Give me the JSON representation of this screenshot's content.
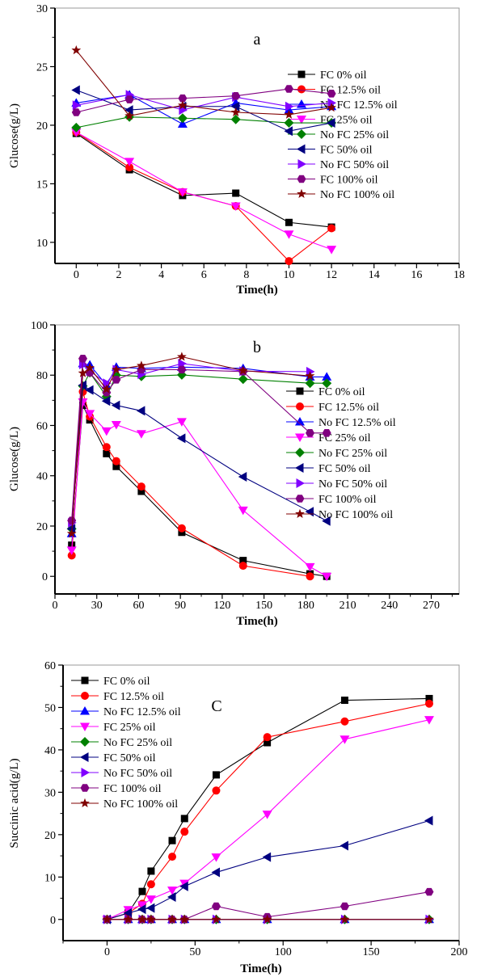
{
  "colors": {
    "FC 0% oil": "#000000",
    "FC 12.5% oil": "#ff0000",
    "No FC 12.5% oil": "#0000ff",
    "FC 25% oil": "#ff00ff",
    "No FC 25% oil": "#008000",
    "FC 50% oil": "#000080",
    "No FC 50% oil": "#8000ff",
    "FC 100% oil": "#800080",
    "No FC 100% oil": "#800000"
  },
  "markers": [
    "square",
    "circle",
    "triangle-up",
    "triangle-down",
    "diamond",
    "triangle-left",
    "triangle-right",
    "hexagon",
    "star"
  ],
  "chart_data": [
    {
      "type": "line",
      "panel_label": "a",
      "xlabel": "Time(h)",
      "ylabel": "Glucose(g/L)",
      "xlim": [
        -1,
        18
      ],
      "ylim": [
        8.2,
        30
      ],
      "xticks": [
        0,
        2,
        4,
        6,
        8,
        10,
        12,
        14,
        16,
        18
      ],
      "yticks": [
        10,
        15,
        20,
        25,
        30
      ],
      "legend": "right",
      "x": [
        0,
        2.5,
        5,
        7.5,
        10,
        12
      ],
      "series": [
        {
          "name": "FC 0% oil",
          "values": [
            19.3,
            16.2,
            14.0,
            14.2,
            11.7,
            11.3
          ]
        },
        {
          "name": "FC 12.5% oil",
          "values": [
            19.4,
            16.4,
            14.3,
            13.1,
            8.4,
            11.2
          ]
        },
        {
          "name": "No FC 12.5% oil",
          "values": [
            21.9,
            22.6,
            20.1,
            21.9,
            21.3,
            21.6
          ]
        },
        {
          "name": "FC 25% oil",
          "values": [
            19.4,
            16.9,
            14.3,
            13.1,
            10.7,
            9.4
          ]
        },
        {
          "name": "No FC 25% oil",
          "values": [
            19.8,
            20.7,
            20.6,
            20.5,
            20.2,
            20.2
          ]
        },
        {
          "name": "FC 50% oil",
          "values": [
            23.0,
            21.3,
            21.6,
            21.6,
            19.5,
            20.2
          ]
        },
        {
          "name": "No FC 50% oil",
          "values": [
            21.7,
            22.6,
            21.3,
            22.4,
            21.6,
            21.9
          ]
        },
        {
          "name": "FC 100% oil",
          "values": [
            21.1,
            22.2,
            22.3,
            22.5,
            23.1,
            22.7
          ]
        },
        {
          "name": "No FC 100% oil",
          "values": [
            26.4,
            20.8,
            21.7,
            21.1,
            20.9,
            21.5
          ]
        }
      ]
    },
    {
      "type": "line",
      "panel_label": "b",
      "xlabel": "Time(h)",
      "ylabel": "Glucose(g/L)",
      "xlim": [
        0,
        290
      ],
      "ylim": [
        -7,
        100
      ],
      "xticks": [
        0,
        30,
        60,
        90,
        120,
        150,
        180,
        210,
        240,
        270
      ],
      "yticks": [
        0,
        20,
        40,
        60,
        80,
        100
      ],
      "legend": "right",
      "x": [
        12,
        20,
        25,
        37,
        44,
        62,
        91,
        135,
        183,
        195
      ],
      "series": [
        {
          "name": "FC 0% oil",
          "values": [
            12.4,
            68,
            62.2,
            48.8,
            43.7,
            33.8,
            17.5,
            6.3,
            1.0,
            0
          ]
        },
        {
          "name": "FC 12.5% oil",
          "values": [
            8.3,
            73.4,
            63.5,
            51.4,
            45.8,
            35.7,
            19.1,
            4.2,
            0,
            null
          ]
        },
        {
          "name": "No FC 12.5% oil",
          "values": [
            17,
            84.6,
            84.1,
            76,
            83.2,
            82.7,
            83.2,
            82.7,
            79.3,
            79.3
          ]
        },
        {
          "name": "FC 25% oil",
          "values": [
            10.4,
            69.3,
            64.7,
            57.8,
            60.3,
            56.7,
            61.5,
            26.3,
            3.8,
            0
          ]
        },
        {
          "name": "No FC 25% oil",
          "values": [
            18.9,
            75.7,
            81,
            71.5,
            80,
            79.5,
            80.1,
            78.4,
            76.8,
            76.8
          ]
        },
        {
          "name": "FC 50% oil",
          "values": [
            18.9,
            76,
            74.1,
            69.7,
            68,
            65.8,
            54.9,
            39.6,
            25.7,
            22
          ]
        },
        {
          "name": "No FC 50% oil",
          "values": [
            21.3,
            84.3,
            81.6,
            76.8,
            82.2,
            80.3,
            84.6,
            81.6,
            81.4,
            null
          ]
        },
        {
          "name": "FC 100% oil",
          "values": [
            22.2,
            86.6,
            81,
            73.1,
            78.2,
            82.2,
            82.2,
            81.4,
            57,
            57
          ]
        },
        {
          "name": "No FC 100% oil",
          "values": [
            17,
            80.8,
            82.9,
            74.4,
            82.2,
            83.8,
            87.3,
            81.8,
            79.7,
            null
          ]
        }
      ]
    },
    {
      "type": "line",
      "panel_label": "C",
      "xlabel": "Time(h)",
      "ylabel": "Succinic acid(g/L)",
      "xlim": [
        -25,
        200
      ],
      "ylim": [
        -5,
        60
      ],
      "xticks": [
        0,
        50,
        100,
        150,
        200
      ],
      "yticks": [
        0,
        10,
        20,
        30,
        40,
        50,
        60
      ],
      "legend": "top-left",
      "x": [
        0,
        12,
        20,
        25,
        37,
        44,
        62,
        91,
        135,
        183
      ],
      "series": [
        {
          "name": "FC 0% oil",
          "values": [
            0,
            1.5,
            6.6,
            11.4,
            18.6,
            23.8,
            34.1,
            41.7,
            51.7,
            52.1
          ]
        },
        {
          "name": "FC 12.5% oil",
          "values": [
            0,
            1.5,
            3.7,
            8.3,
            14.8,
            20.7,
            30.4,
            43,
            46.7,
            50.9
          ]
        },
        {
          "name": "No FC 12.5% oil",
          "values": [
            0,
            0,
            0,
            0,
            0,
            0,
            0,
            0,
            0,
            0
          ]
        },
        {
          "name": "FC 25% oil",
          "values": [
            0,
            2.3,
            3.4,
            4.8,
            6.9,
            8.5,
            14.7,
            24.8,
            42.5,
            47.1
          ]
        },
        {
          "name": "No FC 25% oil",
          "values": [
            0,
            0,
            0,
            0,
            0,
            0,
            0,
            0,
            0,
            0
          ]
        },
        {
          "name": "FC 50% oil",
          "values": [
            0,
            1.5,
            2.4,
            2.7,
            5.3,
            7.8,
            11.1,
            14.7,
            17.4,
            23.3
          ]
        },
        {
          "name": "No FC 50% oil",
          "values": [
            0,
            0,
            0,
            0,
            0,
            0,
            0,
            0,
            0,
            0
          ]
        },
        {
          "name": "FC 100% oil",
          "values": [
            0,
            0,
            0,
            0,
            0,
            0,
            3.1,
            0.6,
            3.1,
            6.5
          ]
        },
        {
          "name": "No FC 100% oil",
          "values": [
            0,
            0,
            0,
            0,
            0,
            0,
            0,
            0,
            0,
            0
          ]
        }
      ]
    }
  ]
}
